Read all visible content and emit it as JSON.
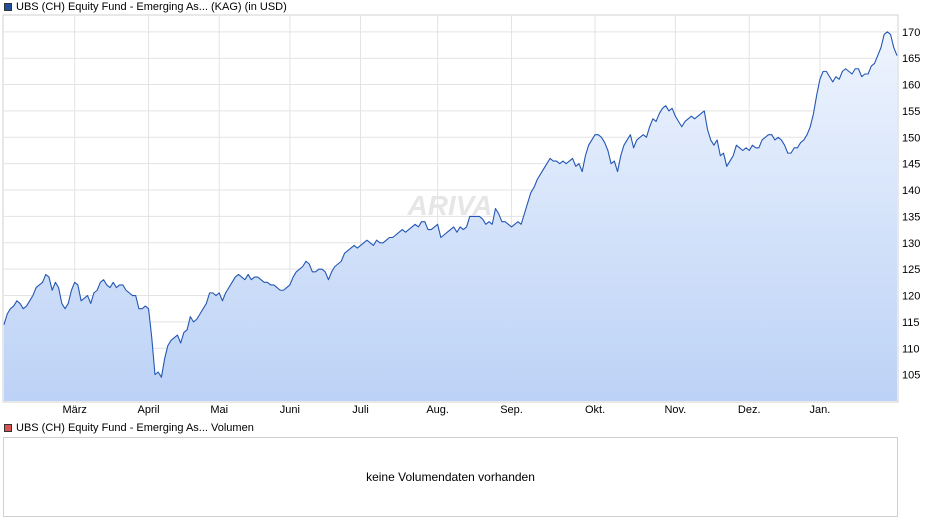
{
  "price_legend": {
    "label": "UBS (CH) Equity Fund - Emerging As... (KAG) (in USD)",
    "color": "#1f4e9c"
  },
  "volume_legend": {
    "label": "UBS (CH) Equity Fund - Emerging As... Volumen",
    "color": "#d9534f"
  },
  "volume_panel": {
    "message": "keine Volumendaten vorhanden"
  },
  "watermark": "ARIVA",
  "chart_data": {
    "type": "area",
    "line_color": "#2457b3",
    "fill_top_color": "#eef4fe",
    "fill_bottom_color": "#bcd2f6",
    "grid": true,
    "ylim": [
      100,
      173
    ],
    "y_ticks": [
      105,
      110,
      115,
      120,
      125,
      130,
      135,
      140,
      145,
      150,
      155,
      160,
      165,
      170
    ],
    "x_ticks": [
      {
        "label": "März",
        "index": 22
      },
      {
        "label": "April",
        "index": 45
      },
      {
        "label": "Mai",
        "index": 67
      },
      {
        "label": "Juni",
        "index": 89
      },
      {
        "label": "Juli",
        "index": 111
      },
      {
        "label": "Aug.",
        "index": 135
      },
      {
        "label": "Sep.",
        "index": 158
      },
      {
        "label": "Okt.",
        "index": 184
      },
      {
        "label": "Nov.",
        "index": 209
      },
      {
        "label": "Dez.",
        "index": 232
      },
      {
        "label": "Jan.",
        "index": 254
      }
    ],
    "values": [
      114.5,
      116.5,
      117.5,
      118.0,
      119.0,
      118.5,
      117.5,
      118.0,
      119.0,
      120.0,
      121.5,
      122.0,
      122.5,
      124.0,
      123.5,
      121.0,
      122.5,
      121.5,
      118.5,
      117.5,
      118.5,
      121.0,
      122.5,
      122.0,
      119.0,
      119.5,
      120.0,
      118.5,
      120.5,
      121.0,
      122.5,
      123.0,
      122.0,
      121.5,
      122.5,
      121.5,
      122.0,
      122.0,
      121.0,
      120.5,
      120.0,
      120.0,
      117.5,
      117.5,
      118.0,
      117.5,
      112.0,
      105.0,
      105.5,
      104.5,
      108.0,
      110.5,
      111.5,
      112.0,
      112.5,
      111.0,
      113.0,
      113.5,
      116.0,
      115.0,
      115.5,
      116.5,
      117.5,
      118.5,
      120.5,
      120.5,
      120.0,
      120.5,
      119.0,
      120.5,
      121.5,
      122.5,
      123.5,
      124.0,
      123.5,
      123.0,
      124.0,
      123.0,
      123.5,
      123.5,
      123.0,
      122.5,
      122.5,
      122.0,
      122.0,
      121.5,
      121.0,
      121.0,
      121.5,
      122.0,
      123.5,
      124.5,
      125.0,
      125.5,
      126.5,
      126.0,
      124.5,
      124.5,
      125.0,
      125.0,
      124.5,
      123.0,
      124.5,
      125.5,
      126.0,
      126.5,
      128.0,
      128.5,
      129.0,
      129.5,
      129.0,
      129.5,
      130.0,
      130.5,
      130.0,
      129.5,
      130.5,
      130.0,
      130.0,
      130.5,
      131.0,
      131.0,
      131.5,
      132.0,
      132.5,
      132.0,
      132.5,
      133.0,
      133.5,
      133.0,
      134.0,
      134.0,
      132.5,
      132.5,
      133.0,
      133.5,
      131.0,
      131.5,
      132.0,
      132.5,
      133.0,
      132.0,
      133.0,
      132.5,
      133.0,
      135.0,
      135.0,
      135.0,
      135.0,
      134.5,
      133.5,
      134.0,
      133.5,
      136.5,
      135.5,
      134.0,
      134.0,
      133.5,
      133.0,
      133.5,
      134.0,
      133.5,
      135.5,
      137.5,
      139.5,
      140.5,
      142.0,
      143.0,
      144.0,
      145.0,
      146.0,
      145.5,
      145.5,
      145.0,
      145.5,
      145.0,
      145.5,
      146.0,
      144.5,
      145.0,
      143.5,
      146.5,
      148.5,
      149.5,
      150.5,
      150.5,
      150.0,
      149.0,
      147.5,
      145.0,
      145.5,
      143.5,
      146.5,
      148.5,
      149.5,
      150.5,
      148.0,
      149.5,
      150.0,
      150.5,
      150.0,
      152.0,
      153.5,
      153.0,
      154.5,
      155.5,
      156.0,
      155.0,
      155.5,
      154.0,
      153.0,
      152.0,
      153.0,
      153.5,
      154.0,
      153.5,
      154.0,
      154.5,
      155.0,
      151.5,
      149.5,
      148.5,
      149.5,
      146.5,
      147.0,
      144.5,
      145.5,
      146.5,
      148.5,
      148.0,
      147.5,
      148.0,
      147.5,
      148.5,
      148.0,
      148.0,
      149.5,
      150.0,
      150.5,
      150.5,
      149.5,
      150.0,
      149.5,
      148.5,
      147.0,
      147.0,
      148.0,
      148.0,
      149.0,
      149.5,
      150.5,
      152.0,
      154.5,
      158.0,
      161.0,
      162.5,
      162.5,
      161.5,
      160.5,
      161.5,
      161.0,
      162.5,
      163.0,
      162.5,
      162.0,
      163.0,
      163.0,
      161.5,
      162.0,
      162.0,
      163.5,
      164.0,
      165.5,
      167.0,
      169.5,
      170.0,
      169.5,
      167.0,
      165.5
    ]
  }
}
